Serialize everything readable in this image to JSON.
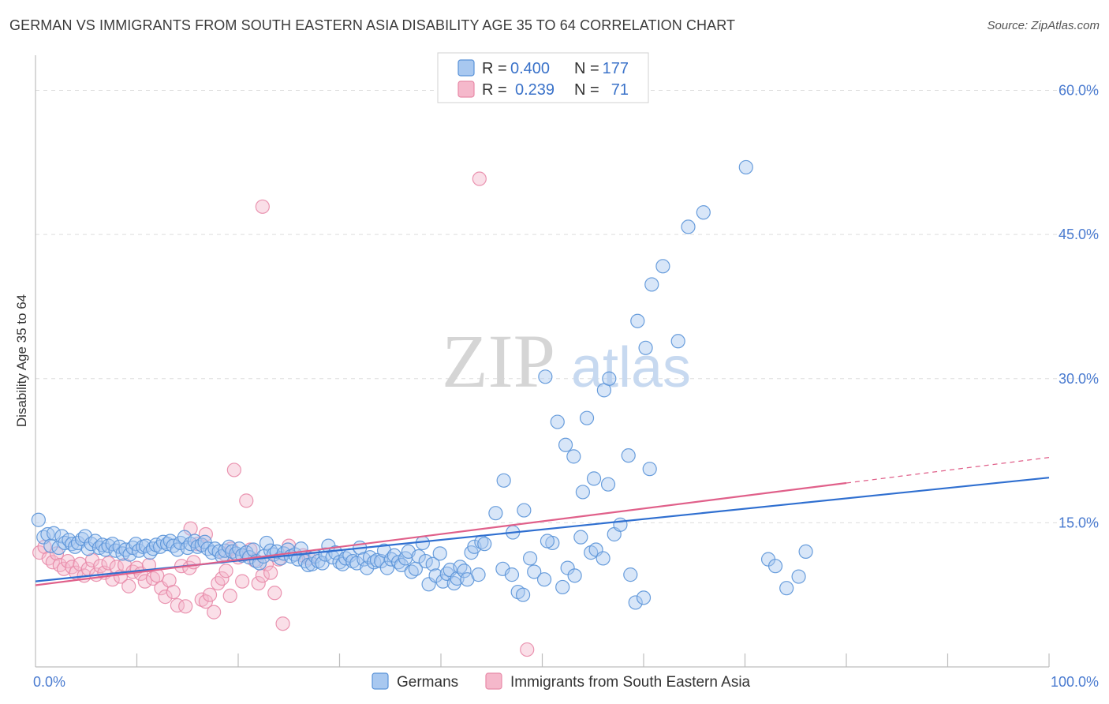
{
  "header": {
    "title": "GERMAN VS IMMIGRANTS FROM SOUTH EASTERN ASIA DISABILITY AGE 35 TO 64 CORRELATION CHART",
    "source": "Source: ZipAtlas.com"
  },
  "watermark": {
    "zip": "ZIP",
    "atlas": "atlas"
  },
  "colors": {
    "blue_fill": "#a8c8f0",
    "blue_stroke": "#5a93d8",
    "blue_line": "#2f6fd0",
    "pink_fill": "#f5b8cb",
    "pink_stroke": "#e88aa8",
    "pink_line": "#e0608a",
    "axis_label": "#4a7bd0",
    "grid": "#dddddd"
  },
  "legend": {
    "rows": [
      {
        "r_label": "R =",
        "r_value": "0.400",
        "n_label": "N =",
        "n_value": "177",
        "series": "blue"
      },
      {
        "r_label": "R =",
        "r_value": "0.239",
        "n_label": "N =",
        "n_value": "71",
        "series": "pink"
      }
    ]
  },
  "bottom_legend": [
    {
      "label": "Germans",
      "series": "blue"
    },
    {
      "label": "Immigrants from South Eastern Asia",
      "series": "pink"
    }
  ],
  "chart_data": {
    "type": "scatter",
    "title": "GERMAN VS IMMIGRANTS FROM SOUTH EASTERN ASIA DISABILITY AGE 35 TO 64 CORRELATION CHART",
    "xlabel": "",
    "ylabel": "Disability Age 35 to 64",
    "xlim": [
      0,
      100
    ],
    "ylim": [
      0,
      63
    ],
    "x_tick_labels": [
      "0.0%",
      "100.0%"
    ],
    "y_ticks": [
      15,
      30,
      45,
      60
    ],
    "y_tick_labels": [
      "15.0%",
      "30.0%",
      "45.0%",
      "60.0%"
    ],
    "grid": true,
    "series": [
      {
        "name": "Germans",
        "color": "blue",
        "trend": {
          "x0": 0,
          "y0": 8.9,
          "x1": 100,
          "y1": 19.7
        },
        "points": [
          [
            0.3,
            15.3
          ],
          [
            0.8,
            13.5
          ],
          [
            1.2,
            13.8
          ],
          [
            1.5,
            12.6
          ],
          [
            1.8,
            13.9
          ],
          [
            2.3,
            12.4
          ],
          [
            2.6,
            13.6
          ],
          [
            2.9,
            12.9
          ],
          [
            3.3,
            13.2
          ],
          [
            3.6,
            12.8
          ],
          [
            3.9,
            12.5
          ],
          [
            4.2,
            12.9
          ],
          [
            4.6,
            13.3
          ],
          [
            4.9,
            13.6
          ],
          [
            5.2,
            12.3
          ],
          [
            5.5,
            12.8
          ],
          [
            5.9,
            13.1
          ],
          [
            6.3,
            12.4
          ],
          [
            6.6,
            12.7
          ],
          [
            6.9,
            12.2
          ],
          [
            7.2,
            12.6
          ],
          [
            7.6,
            12.8
          ],
          [
            7.9,
            12.1
          ],
          [
            8.3,
            12.5
          ],
          [
            8.6,
            11.8
          ],
          [
            8.9,
            12.2
          ],
          [
            9.3,
            11.7
          ],
          [
            9.6,
            12.4
          ],
          [
            9.9,
            12.8
          ],
          [
            10.2,
            12.1
          ],
          [
            10.6,
            12.5
          ],
          [
            10.9,
            12.6
          ],
          [
            11.3,
            11.9
          ],
          [
            11.6,
            12.3
          ],
          [
            11.9,
            12.7
          ],
          [
            12.3,
            12.5
          ],
          [
            12.6,
            13.0
          ],
          [
            13.0,
            12.8
          ],
          [
            13.3,
            13.1
          ],
          [
            13.6,
            12.6
          ],
          [
            14.0,
            12.2
          ],
          [
            14.3,
            12.9
          ],
          [
            14.7,
            13.5
          ],
          [
            15.0,
            12.4
          ],
          [
            15.3,
            12.8
          ],
          [
            15.7,
            13.1
          ],
          [
            16.0,
            12.5
          ],
          [
            16.4,
            12.7
          ],
          [
            16.7,
            13.0
          ],
          [
            17.0,
            12.3
          ],
          [
            17.4,
            11.9
          ],
          [
            17.7,
            12.3
          ],
          [
            18.1,
            12.0
          ],
          [
            18.4,
            11.5
          ],
          [
            18.7,
            12.1
          ],
          [
            19.1,
            12.5
          ],
          [
            19.4,
            12.0
          ],
          [
            19.8,
            11.8
          ],
          [
            20.1,
            12.3
          ],
          [
            20.4,
            11.6
          ],
          [
            20.8,
            11.9
          ],
          [
            21.1,
            11.4
          ],
          [
            21.5,
            12.2
          ],
          [
            21.8,
            11.0
          ],
          [
            22.1,
            10.8
          ],
          [
            22.5,
            11.5
          ],
          [
            22.8,
            12.9
          ],
          [
            23.2,
            12.1
          ],
          [
            23.5,
            11.7
          ],
          [
            23.8,
            12.0
          ],
          [
            24.2,
            11.3
          ],
          [
            24.5,
            11.8
          ],
          [
            24.9,
            12.2
          ],
          [
            25.2,
            11.5
          ],
          [
            25.6,
            11.7
          ],
          [
            25.9,
            11.2
          ],
          [
            26.2,
            12.3
          ],
          [
            26.6,
            11.0
          ],
          [
            26.9,
            10.6
          ],
          [
            27.3,
            10.7
          ],
          [
            27.6,
            11.5
          ],
          [
            27.9,
            11.0
          ],
          [
            28.3,
            10.8
          ],
          [
            28.6,
            11.7
          ],
          [
            28.9,
            12.6
          ],
          [
            29.3,
            11.4
          ],
          [
            29.6,
            11.9
          ],
          [
            30.0,
            10.9
          ],
          [
            30.3,
            10.7
          ],
          [
            30.6,
            11.3
          ],
          [
            31.0,
            11.6
          ],
          [
            31.3,
            11.0
          ],
          [
            31.7,
            10.8
          ],
          [
            32.0,
            12.4
          ],
          [
            32.4,
            11.2
          ],
          [
            32.7,
            10.3
          ],
          [
            33.0,
            11.4
          ],
          [
            33.4,
            10.9
          ],
          [
            33.7,
            11.1
          ],
          [
            34.1,
            11.0
          ],
          [
            34.4,
            12.1
          ],
          [
            34.7,
            10.3
          ],
          [
            35.1,
            11.2
          ],
          [
            35.4,
            11.6
          ],
          [
            35.8,
            10.9
          ],
          [
            36.1,
            10.6
          ],
          [
            36.5,
            11.3
          ],
          [
            36.8,
            12.0
          ],
          [
            37.1,
            9.9
          ],
          [
            37.5,
            10.2
          ],
          [
            37.8,
            11.5
          ],
          [
            38.2,
            12.9
          ],
          [
            38.5,
            11.0
          ],
          [
            38.8,
            8.6
          ],
          [
            39.2,
            10.7
          ],
          [
            39.5,
            9.5
          ],
          [
            39.9,
            11.8
          ],
          [
            40.2,
            8.9
          ],
          [
            40.6,
            9.7
          ],
          [
            40.9,
            10.1
          ],
          [
            41.3,
            8.7
          ],
          [
            41.6,
            9.2
          ],
          [
            41.9,
            10.4
          ],
          [
            42.3,
            10.0
          ],
          [
            42.6,
            9.1
          ],
          [
            43.0,
            11.9
          ],
          [
            43.3,
            12.5
          ],
          [
            43.7,
            9.6
          ],
          [
            44.0,
            13.0
          ],
          [
            44.3,
            12.8
          ],
          [
            45.4,
            16.0
          ],
          [
            46.1,
            10.2
          ],
          [
            47.0,
            9.6
          ],
          [
            47.6,
            7.8
          ],
          [
            48.1,
            7.5
          ],
          [
            48.8,
            11.3
          ],
          [
            49.2,
            9.9
          ],
          [
            50.2,
            9.1
          ],
          [
            51.0,
            12.9
          ],
          [
            52.0,
            8.3
          ],
          [
            52.5,
            10.3
          ],
          [
            53.2,
            9.5
          ],
          [
            53.8,
            13.5
          ],
          [
            54.8,
            11.9
          ],
          [
            55.3,
            12.2
          ],
          [
            56.0,
            11.3
          ],
          [
            57.1,
            13.8
          ],
          [
            58.7,
            9.6
          ],
          [
            59.2,
            6.7
          ],
          [
            60.0,
            7.2
          ],
          [
            46.2,
            19.4
          ],
          [
            47.1,
            14.0
          ],
          [
            48.2,
            16.3
          ],
          [
            50.5,
            13.1
          ],
          [
            53.1,
            21.9
          ],
          [
            54.0,
            18.2
          ],
          [
            55.1,
            19.6
          ],
          [
            56.5,
            19.0
          ],
          [
            57.7,
            14.8
          ],
          [
            52.3,
            23.1
          ],
          [
            51.5,
            25.5
          ],
          [
            50.3,
            30.2
          ],
          [
            54.4,
            25.9
          ],
          [
            56.1,
            28.8
          ],
          [
            56.6,
            30.0
          ],
          [
            58.5,
            22.0
          ],
          [
            60.6,
            20.6
          ],
          [
            60.2,
            33.2
          ],
          [
            59.4,
            36.0
          ],
          [
            60.8,
            39.8
          ],
          [
            61.9,
            41.7
          ],
          [
            63.4,
            33.9
          ],
          [
            64.4,
            45.8
          ],
          [
            65.9,
            47.3
          ],
          [
            70.1,
            52.0
          ],
          [
            72.3,
            11.2
          ],
          [
            73.0,
            10.5
          ],
          [
            74.1,
            8.2
          ],
          [
            75.3,
            9.4
          ],
          [
            76.0,
            12.0
          ]
        ]
      },
      {
        "name": "Immigrants from South Eastern Asia",
        "color": "pink",
        "trend": {
          "x0": 0,
          "y0": 8.5,
          "x1": 100,
          "y1": 21.8,
          "solid_until": 80
        },
        "points": [
          [
            0.4,
            11.9
          ],
          [
            0.9,
            12.5
          ],
          [
            1.3,
            11.3
          ],
          [
            1.7,
            10.9
          ],
          [
            2.1,
            11.8
          ],
          [
            2.4,
            10.6
          ],
          [
            2.8,
            10.2
          ],
          [
            3.2,
            11.0
          ],
          [
            3.6,
            10.4
          ],
          [
            4.0,
            9.8
          ],
          [
            4.4,
            10.7
          ],
          [
            4.8,
            9.5
          ],
          [
            5.2,
            10.2
          ],
          [
            5.6,
            11.1
          ],
          [
            6.0,
            9.6
          ],
          [
            6.4,
            10.5
          ],
          [
            6.8,
            9.8
          ],
          [
            7.2,
            10.8
          ],
          [
            7.6,
            9.1
          ],
          [
            8.0,
            10.4
          ],
          [
            8.4,
            9.4
          ],
          [
            8.8,
            10.6
          ],
          [
            9.2,
            8.4
          ],
          [
            9.6,
            9.9
          ],
          [
            10.0,
            10.3
          ],
          [
            10.4,
            9.7
          ],
          [
            10.8,
            8.9
          ],
          [
            11.2,
            10.6
          ],
          [
            11.6,
            9.2
          ],
          [
            12.0,
            9.5
          ],
          [
            12.4,
            8.2
          ],
          [
            12.8,
            7.3
          ],
          [
            13.2,
            9.0
          ],
          [
            13.6,
            7.8
          ],
          [
            14.0,
            6.4
          ],
          [
            14.4,
            10.5
          ],
          [
            14.8,
            6.3
          ],
          [
            15.2,
            10.3
          ],
          [
            15.6,
            10.9
          ],
          [
            16.0,
            12.8
          ],
          [
            16.4,
            7.0
          ],
          [
            16.8,
            6.8
          ],
          [
            17.2,
            7.5
          ],
          [
            17.6,
            5.7
          ],
          [
            18.0,
            8.7
          ],
          [
            18.4,
            9.2
          ],
          [
            18.8,
            10.0
          ],
          [
            19.2,
            7.4
          ],
          [
            19.6,
            20.5
          ],
          [
            20.0,
            11.4
          ],
          [
            20.4,
            8.9
          ],
          [
            20.8,
            17.3
          ],
          [
            21.2,
            12.2
          ],
          [
            21.6,
            11.1
          ],
          [
            22.0,
            8.7
          ],
          [
            22.4,
            9.5
          ],
          [
            22.8,
            10.7
          ],
          [
            23.2,
            9.8
          ],
          [
            23.6,
            7.7
          ],
          [
            24.0,
            11.2
          ],
          [
            24.4,
            4.5
          ],
          [
            25.0,
            12.6
          ],
          [
            26.4,
            11.6
          ],
          [
            27.0,
            11.3
          ],
          [
            19.3,
            12.3
          ],
          [
            18.7,
            11.7
          ],
          [
            15.3,
            14.4
          ],
          [
            16.8,
            13.8
          ],
          [
            22.4,
            47.9
          ],
          [
            43.8,
            50.8
          ],
          [
            48.5,
            1.8
          ]
        ]
      }
    ]
  }
}
